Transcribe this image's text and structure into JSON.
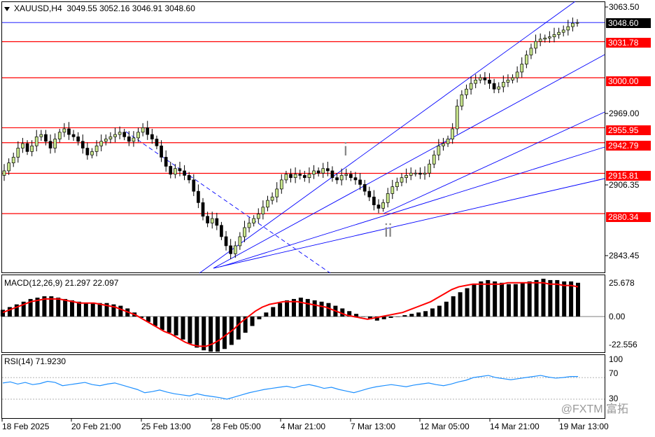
{
  "header": {
    "symbol": "XAUUSD,H4",
    "ohlc": "3049.55 3052.16 3046.91 3048.60"
  },
  "price_axis": {
    "ticks": [
      "3063.50",
      "2969.00",
      "2906.35",
      "2843.45"
    ],
    "current_price": "3048.60"
  },
  "levels": [
    {
      "label": "3031.78",
      "value": 3031.78
    },
    {
      "label": "3000.00",
      "value": 3000.0
    },
    {
      "label": "2955.95",
      "value": 2955.95
    },
    {
      "label": "2942.79",
      "value": 2942.79
    },
    {
      "label": "2915.81",
      "value": 2915.81
    },
    {
      "label": "2880.34",
      "value": 2880.34
    }
  ],
  "annotations": {
    "wave_i": "i",
    "wave_ii": "ii"
  },
  "macd": {
    "label": "MACD(12,26,9) 21.297 22.097",
    "ticks": [
      "25.678",
      "0.00",
      "-22.556"
    ]
  },
  "rsi": {
    "label": "RSI(14) 71.9230",
    "ticks": [
      "100",
      "70",
      "30"
    ]
  },
  "time_axis": [
    "18 Feb 2025",
    "20 Feb 21:00",
    "25 Feb 13:00",
    "28 Feb 05:00",
    "4 Mar 21:00",
    "7 Mar 13:00",
    "12 Mar 05:00",
    "14 Mar 21:00",
    "19 Mar 13:00"
  ],
  "watermark": "@FXTM 富拓",
  "colors": {
    "level_line": "#ff0000",
    "channel_line": "#0000ff",
    "bull": "#c8e68c",
    "bear": "#000000",
    "signal": "#ff0000",
    "rsi_line": "#1e90ff"
  },
  "chart_data": {
    "type": "candlestick",
    "symbol": "XAUUSD",
    "timeframe": "H4",
    "ylim": [
      2832,
      3067
    ],
    "close_series": [
      2918,
      2925,
      2930,
      2938,
      2942,
      2935,
      2940,
      2948,
      2950,
      2944,
      2938,
      2946,
      2952,
      2955,
      2950,
      2948,
      2944,
      2938,
      2932,
      2935,
      2940,
      2944,
      2946,
      2948,
      2950,
      2952,
      2948,
      2944,
      2947,
      2952,
      2956,
      2950,
      2946,
      2940,
      2930,
      2922,
      2915,
      2920,
      2918,
      2914,
      2910,
      2900,
      2890,
      2878,
      2872,
      2876,
      2870,
      2860,
      2852,
      2845,
      2852,
      2860,
      2868,
      2872,
      2876,
      2880,
      2886,
      2892,
      2895,
      2902,
      2910,
      2915,
      2912,
      2915,
      2914,
      2912,
      2915,
      2918,
      2916,
      2920,
      2918,
      2912,
      2910,
      2914,
      2915,
      2912,
      2910,
      2906,
      2900,
      2895,
      2888,
      2885,
      2890,
      2898,
      2904,
      2908,
      2912,
      2914,
      2916,
      2916,
      2915,
      2916,
      2924,
      2932,
      2940,
      2942,
      2946,
      2955,
      2975,
      2985,
      2990,
      2995,
      2998,
      3000,
      2998,
      2995,
      2990,
      2992,
      2996,
      2998,
      3000,
      3005,
      3012,
      3020,
      3026,
      3032,
      3034,
      3035,
      3036,
      3038,
      3040,
      3042,
      3045,
      3048,
      3048.6
    ],
    "macd_histogram": [
      5,
      7,
      9,
      11,
      13,
      14,
      15,
      15,
      14,
      13,
      12,
      11,
      10,
      10,
      10,
      10,
      9,
      8,
      6,
      3,
      -1,
      -4,
      -7,
      -10,
      -12,
      -14,
      -17,
      -20,
      -23,
      -25,
      -26,
      -26,
      -24,
      -21,
      -17,
      -12,
      -7,
      -2,
      3,
      7,
      10,
      12,
      13,
      14,
      13,
      12,
      11,
      10,
      8,
      6,
      4,
      2,
      0,
      -2,
      -3,
      -2,
      -1,
      0,
      1,
      2,
      3,
      4,
      6,
      8,
      11,
      15,
      18,
      21,
      24,
      26,
      27,
      26,
      25,
      24,
      24,
      25,
      26,
      27,
      28,
      27,
      27,
      26,
      26,
      25
    ],
    "macd_signal": [
      3,
      5,
      7,
      9,
      11,
      12,
      13,
      13,
      13,
      12,
      11,
      10,
      10,
      10,
      9,
      8,
      7,
      5,
      3,
      1,
      -2,
      -5,
      -8,
      -11,
      -13,
      -16,
      -19,
      -21,
      -22,
      -22,
      -20,
      -17,
      -13,
      -9,
      -4,
      0,
      4,
      7,
      9,
      10,
      11,
      11,
      11,
      10,
      9,
      8,
      7,
      5,
      3,
      1,
      0,
      -1,
      -2,
      -1,
      0,
      1,
      2,
      3,
      5,
      7,
      9,
      11,
      14,
      17,
      20,
      22,
      23,
      24,
      24,
      24,
      24,
      24,
      25,
      25,
      25,
      25,
      25,
      25,
      24,
      24,
      23,
      23,
      22
    ],
    "rsi_series": [
      60,
      62,
      58,
      61,
      57,
      59,
      63,
      61,
      55,
      57,
      59,
      61,
      57,
      55,
      58,
      60,
      56,
      52,
      48,
      42,
      44,
      47,
      43,
      40,
      38,
      36,
      40,
      37,
      35,
      33,
      30,
      34,
      38,
      42,
      45,
      48,
      50,
      52,
      54,
      51,
      55,
      57,
      54,
      50,
      52,
      48,
      45,
      42,
      46,
      50,
      53,
      55,
      57,
      55,
      53,
      56,
      58,
      60,
      57,
      55,
      58,
      62,
      65,
      70,
      72,
      74,
      70,
      68,
      66,
      68,
      70,
      72,
      74,
      71,
      69,
      70,
      72,
      72
    ]
  }
}
